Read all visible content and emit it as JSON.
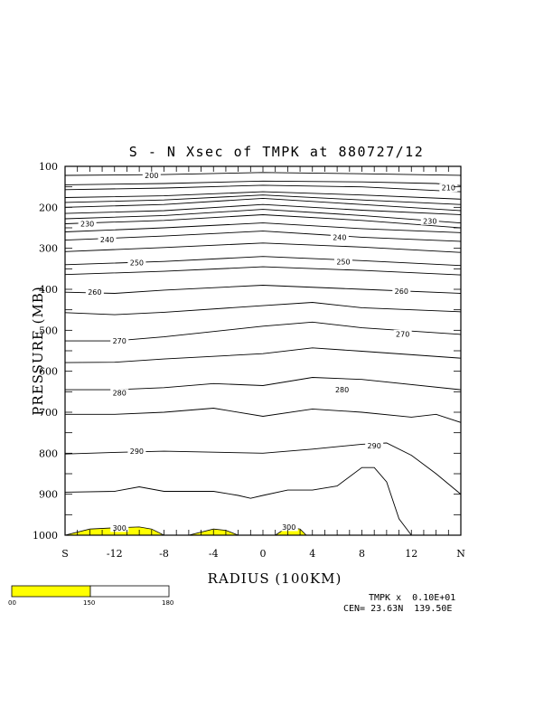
{
  "chart_data": {
    "type": "contour",
    "title": "S - N Xsec of TMPK at 880727/12",
    "xlabel": "RADIUS (100KM)",
    "ylabel": "PRESSURE (MB)",
    "xlim": [
      -16,
      16
    ],
    "ylim": [
      1000,
      100
    ],
    "y_scale": "linear, pressure decreasing upward",
    "x_tick_labels": [
      {
        "x": -16,
        "label": "S"
      },
      {
        "x": -12,
        "label": "-12"
      },
      {
        "x": -8,
        "label": "-8"
      },
      {
        "x": -4,
        "label": "-4"
      },
      {
        "x": 0,
        "label": "0"
      },
      {
        "x": 4,
        "label": "4"
      },
      {
        "x": 8,
        "label": "8"
      },
      {
        "x": 12,
        "label": "12"
      },
      {
        "x": 16,
        "label": "N"
      }
    ],
    "y_ticks": [
      100,
      200,
      300,
      400,
      500,
      600,
      700,
      800,
      900,
      1000
    ],
    "contour_interval": 5,
    "labeled_levels": [
      210,
      230,
      240,
      250,
      260,
      270,
      280,
      290,
      300
    ],
    "contour_labels": [
      {
        "text": "200",
        "x": -9.0,
        "p": 122
      },
      {
        "text": "210",
        "x": 15.0,
        "p": 152
      },
      {
        "text": "230",
        "x": -14.2,
        "p": 240
      },
      {
        "text": "230",
        "x": 13.5,
        "p": 233
      },
      {
        "text": "240",
        "x": -12.6,
        "p": 279
      },
      {
        "text": "240",
        "x": 6.2,
        "p": 273
      },
      {
        "text": "250",
        "x": -10.2,
        "p": 335
      },
      {
        "text": "250",
        "x": 6.5,
        "p": 333
      },
      {
        "text": "260",
        "x": -13.6,
        "p": 407
      },
      {
        "text": "260",
        "x": 11.2,
        "p": 404
      },
      {
        "text": "270",
        "x": -11.6,
        "p": 526
      },
      {
        "text": "270",
        "x": 11.3,
        "p": 509
      },
      {
        "text": "280",
        "x": -11.6,
        "p": 653
      },
      {
        "text": "280",
        "x": 6.4,
        "p": 645
      },
      {
        "text": "290",
        "x": -10.2,
        "p": 795
      },
      {
        "text": "290",
        "x": 9.0,
        "p": 782
      },
      {
        "text": "300",
        "x": -11.6,
        "p": 982
      },
      {
        "text": "300",
        "x": 2.1,
        "p": 980
      }
    ],
    "contours": [
      {
        "x": [
          -16,
          -8,
          0,
          8,
          16
        ],
        "p": [
          122,
          120,
          115,
          118,
          122
        ]
      },
      {
        "x": [
          -16,
          -8,
          0,
          8,
          14,
          16
        ],
        "p": [
          145,
          142,
          136,
          138,
          142,
          147
        ]
      },
      {
        "x": [
          -16,
          -8,
          0,
          8,
          16
        ],
        "p": [
          157,
          153,
          146,
          150,
          162
        ]
      },
      {
        "x": [
          -16,
          -8,
          0,
          8,
          16
        ],
        "p": [
          176,
          172,
          162,
          170,
          180
        ]
      },
      {
        "x": [
          -16,
          -8,
          0,
          8,
          16
        ],
        "p": [
          188,
          182,
          170,
          182,
          193
        ]
      },
      {
        "x": [
          -16,
          -8,
          0,
          8,
          16
        ],
        "p": [
          200,
          193,
          178,
          193,
          208
        ]
      },
      {
        "x": [
          -16,
          -8,
          0,
          8,
          16
        ],
        "p": [
          215,
          208,
          193,
          207,
          218
        ]
      },
      {
        "x": [
          -16,
          -8,
          0,
          8,
          16
        ],
        "p": [
          228,
          220,
          205,
          220,
          238
        ]
      },
      {
        "x": [
          -16,
          -8,
          0,
          8,
          16
        ],
        "p": [
          240,
          232,
          218,
          232,
          250
        ]
      },
      {
        "x": [
          -16,
          -8,
          0,
          8,
          16
        ],
        "p": [
          260,
          250,
          238,
          252,
          262
        ]
      },
      {
        "x": [
          -16,
          -8,
          0,
          8,
          16
        ],
        "p": [
          280,
          270,
          258,
          273,
          283
        ]
      },
      {
        "x": [
          -16,
          -8,
          0,
          8,
          16
        ],
        "p": [
          308,
          298,
          287,
          297,
          310
        ]
      },
      {
        "x": [
          -16,
          -8,
          0,
          8,
          16
        ],
        "p": [
          340,
          332,
          320,
          330,
          342
        ]
      },
      {
        "x": [
          -16,
          -8,
          0,
          8,
          16
        ],
        "p": [
          364,
          356,
          345,
          354,
          365
        ]
      },
      {
        "x": [
          -16,
          -12,
          -8,
          0,
          8,
          16
        ],
        "p": [
          407,
          410,
          402,
          390,
          400,
          410
        ]
      },
      {
        "x": [
          -16,
          -12,
          -8,
          0,
          4,
          8,
          16
        ],
        "p": [
          457,
          462,
          456,
          440,
          432,
          445,
          455
        ]
      },
      {
        "x": [
          -16,
          -12,
          -8,
          0,
          4,
          8,
          16
        ],
        "p": [
          526,
          526,
          516,
          490,
          480,
          494,
          510
        ]
      },
      {
        "x": [
          -16,
          -12,
          -8,
          0,
          4,
          8,
          16
        ],
        "p": [
          579,
          578,
          570,
          557,
          543,
          551,
          568
        ]
      },
      {
        "x": [
          -16,
          -12,
          -8,
          -4,
          0,
          4,
          8,
          16
        ],
        "p": [
          645,
          645,
          640,
          630,
          635,
          615,
          620,
          645
        ]
      },
      {
        "x": [
          -16,
          -12,
          -8,
          -4,
          0,
          4,
          8,
          12,
          14,
          16
        ],
        "p": [
          705,
          705,
          700,
          690,
          710,
          692,
          700,
          712,
          705,
          725
        ]
      },
      {
        "x": [
          -16,
          -12,
          -8,
          0,
          4,
          8,
          10,
          12,
          14,
          16
        ],
        "p": [
          802,
          798,
          795,
          800,
          790,
          778,
          775,
          805,
          850,
          900
        ]
      },
      {
        "x": [
          -16,
          -12,
          -10,
          -8,
          -4,
          -2,
          -1,
          0,
          2,
          4,
          6,
          8,
          9,
          10,
          11,
          12
        ],
        "p": [
          895,
          893,
          882,
          893,
          893,
          903,
          910,
          903,
          890,
          890,
          880,
          835,
          835,
          870,
          960,
          1000
        ]
      }
    ],
    "shaded_regions": [
      {
        "label": "300",
        "x": [
          -16,
          -14,
          -12,
          -10,
          -9,
          -8
        ],
        "p": [
          1000,
          985,
          982,
          980,
          985,
          1000
        ]
      },
      {
        "label": "300",
        "x": [
          -6,
          -4,
          -3,
          -2
        ],
        "p": [
          1000,
          985,
          988,
          1000
        ]
      },
      {
        "label": "300",
        "x": [
          1,
          2,
          3,
          3.5
        ],
        "p": [
          1000,
          980,
          985,
          1000
        ]
      }
    ],
    "fill_color": "#ffff00",
    "line_color": "#000000"
  },
  "colorbar": {
    "labels": [
      "00",
      "150",
      "180"
    ],
    "segments": [
      {
        "color": "#ffff00"
      },
      {
        "color": "#ffffff"
      }
    ]
  },
  "footer": {
    "line1": "TMPK x  0.10E+01",
    "line2": "CEN= 23.63N  139.50E"
  }
}
